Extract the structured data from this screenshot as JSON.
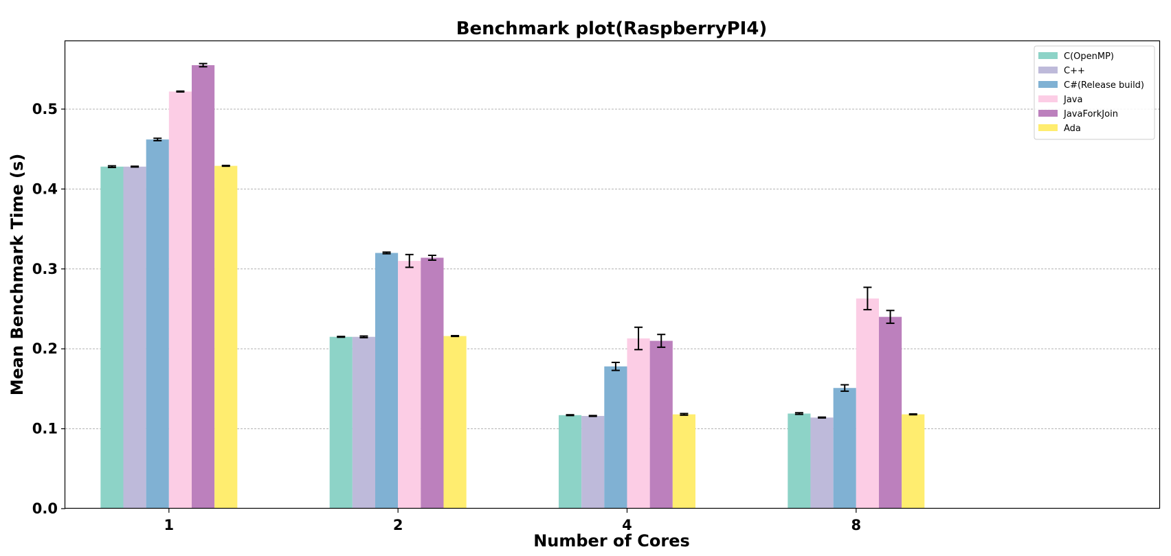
{
  "chart_data": {
    "type": "bar",
    "title": "Benchmark plot(RaspberryPI4)",
    "xlabel": "Number of Cores",
    "ylabel": "Mean Benchmark Time (s)",
    "categories": [
      "1",
      "2",
      "4",
      "8"
    ],
    "ylim": [
      0,
      0.585
    ],
    "yticks": [
      "0.0",
      "0.1",
      "0.2",
      "0.3",
      "0.4",
      "0.5"
    ],
    "grid": "horizontal dashed",
    "legend_position": "top-right",
    "series": [
      {
        "name": "C(OpenMP)",
        "color": "#8dd3c7",
        "values": [
          0.428,
          0.215,
          0.117,
          0.119
        ],
        "errors": [
          0.001,
          0.0005,
          0.0005,
          0.001
        ]
      },
      {
        "name": "C++",
        "color": "#bebada",
        "values": [
          0.428,
          0.215,
          0.116,
          0.114
        ],
        "errors": [
          0.0005,
          0.001,
          0.0005,
          0.0005
        ]
      },
      {
        "name": "C#(Release build)",
        "color": "#80b1d3",
        "values": [
          0.462,
          0.32,
          0.178,
          0.151
        ],
        "errors": [
          0.0015,
          0.001,
          0.005,
          0.004
        ]
      },
      {
        "name": "Java",
        "color": "#fccde5",
        "values": [
          0.522,
          0.31,
          0.213,
          0.263
        ],
        "errors": [
          0.0005,
          0.008,
          0.014,
          0.014
        ]
      },
      {
        "name": "JavaForkJoin",
        "color": "#bc80bd",
        "values": [
          0.555,
          0.314,
          0.21,
          0.24
        ],
        "errors": [
          0.002,
          0.003,
          0.008,
          0.008
        ]
      },
      {
        "name": "Ada",
        "color": "#ffed6f",
        "values": [
          0.429,
          0.216,
          0.118,
          0.118
        ],
        "errors": [
          0.0005,
          0.0005,
          0.001,
          0.0005
        ]
      }
    ]
  }
}
